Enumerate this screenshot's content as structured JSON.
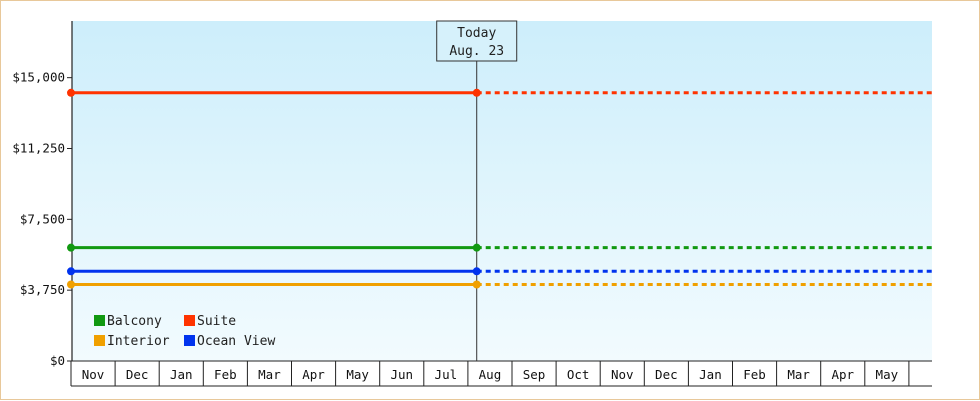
{
  "chart_data": {
    "type": "line",
    "x_categories": [
      "Nov",
      "Dec",
      "Jan",
      "Feb",
      "Mar",
      "Apr",
      "May",
      "Jun",
      "Jul",
      "Aug",
      "Sep",
      "Oct",
      "Nov",
      "Dec",
      "Jan",
      "Feb",
      "Mar",
      "Apr",
      "May"
    ],
    "yticks": [
      "$0",
      "$3,750",
      "$7,500",
      "$11,250",
      "$15,000"
    ],
    "ylim": [
      0,
      18000
    ],
    "today": {
      "line1": "Today",
      "line2": "Aug. 23",
      "position": 9.2
    },
    "grid": false,
    "legend_position": "bottom-left",
    "series": [
      {
        "name": "Suite",
        "color": "#ff3300",
        "value": 14200
      },
      {
        "name": "Balcony",
        "color": "#119911",
        "value": 6000
      },
      {
        "name": "Ocean View",
        "color": "#0033ee",
        "value": 4750
      },
      {
        "name": "Interior",
        "color": "#f0a000",
        "value": 4050
      }
    ],
    "legend": [
      {
        "name": "Balcony",
        "color": "#119911"
      },
      {
        "name": "Suite",
        "color": "#ff3300"
      },
      {
        "name": "Interior",
        "color": "#f0a000"
      },
      {
        "name": "Ocean View",
        "color": "#0033ee"
      }
    ]
  }
}
